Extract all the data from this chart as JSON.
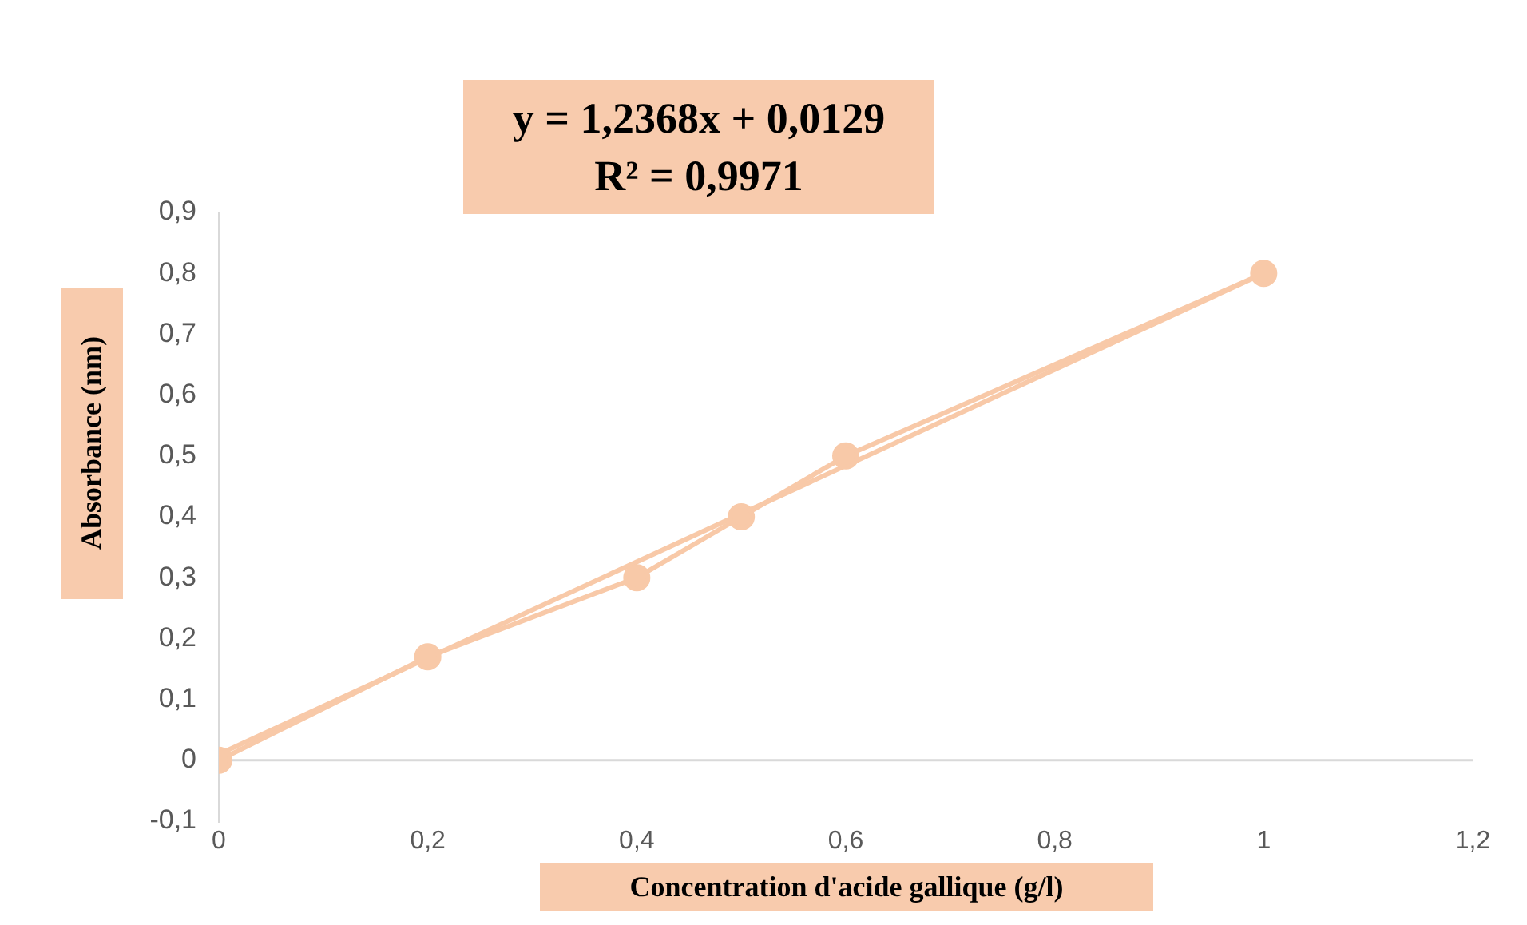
{
  "chart_data": {
    "type": "line",
    "xlabel": "Concentration  d'acide gallique (g/l)",
    "ylabel": "Absorbance (nm)",
    "annotations": [
      "y = 1,2368x + 0,0129",
      "R² = 0,9971"
    ],
    "series": [
      {
        "color": "#f8c9a8",
        "x": [
          0,
          0.2,
          0.4,
          0.5,
          0.6,
          1
        ],
        "values": [
          0,
          0.17,
          0.3,
          0.4,
          0.5,
          0.8
        ],
        "marker": "circle"
      },
      {
        "type": "line",
        "color": "#f8c9a8",
        "x": [
          0,
          1
        ],
        "values": [
          0.01,
          0.8
        ],
        "marker": "none"
      }
    ],
    "xlim": [
      0,
      1.2
    ],
    "xticks": [
      {
        "value": 0,
        "label": "0"
      },
      {
        "value": 0.2,
        "label": "0,2"
      },
      {
        "value": 0.4,
        "label": "0,4"
      },
      {
        "value": 0.6,
        "label": "0,6"
      },
      {
        "value": 0.8,
        "label": "0,8"
      },
      {
        "value": 1,
        "label": "1"
      },
      {
        "value": 1.2,
        "label": "1,2"
      }
    ],
    "ylim": [
      -0.1,
      0.9
    ],
    "yticks": [
      {
        "value": -0.1,
        "label": "-0,1"
      },
      {
        "value": 0,
        "label": "0"
      },
      {
        "value": 0.1,
        "label": "0,1"
      },
      {
        "value": 0.2,
        "label": "0,2"
      },
      {
        "value": 0.3,
        "label": "0,3"
      },
      {
        "value": 0.4,
        "label": "0,4"
      },
      {
        "value": 0.5,
        "label": "0,5"
      },
      {
        "value": 0.6,
        "label": "0,6"
      },
      {
        "value": 0.7,
        "label": "0,7"
      },
      {
        "value": 0.8,
        "label": "0,8"
      },
      {
        "value": 0.9,
        "label": "0,9"
      }
    ],
    "ref_lines": [
      {
        "axis": "y",
        "value": 0,
        "color": "#d9d9d9"
      }
    ],
    "grid": false,
    "legend": false
  }
}
